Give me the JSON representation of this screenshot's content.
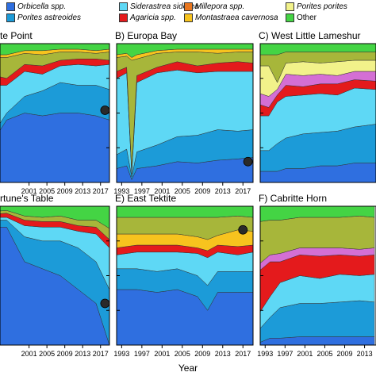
{
  "legend": [
    {
      "label": "Orbicella spp.",
      "color": "#2f6fe0",
      "italic": true
    },
    {
      "label": "Siderastrea siderea",
      "color": "#5ed8f5",
      "italic": true
    },
    {
      "label": "Millepora spp.",
      "color": "#e8761e",
      "italic": true
    },
    {
      "label": "Porites porites",
      "color": "#f2f28a",
      "italic": true
    },
    {
      "label": "Porites astreoides",
      "color": "#1c9bd8",
      "italic": true
    },
    {
      "label": "Agaricia spp.",
      "color": "#e41a1c",
      "italic": true
    },
    {
      "label": "Montastraea cavernosa",
      "color": "#f7c31e",
      "italic": true
    },
    {
      "label": "Other",
      "color": "#44d444",
      "italic": false
    }
  ],
  "colors": {
    "orbicella": "#2f6fe0",
    "porites_astreoides": "#1c9bd8",
    "siderastrea": "#5ed8f5",
    "agaricia": "#e41a1c",
    "millepora": "#e8761e",
    "montastraea": "#f7c31e",
    "porites_porites": "#f2f28a",
    "purple": "#d46fd4",
    "olive": "#a7b63a",
    "other": "#44d444",
    "marker": "#2a2a2a"
  },
  "x_axis_title": "Year",
  "chart_data": [
    {
      "type": "area",
      "stacked": true,
      "title": "C) West Little Lameshur",
      "shown_title": "te Point",
      "x": [
        1992,
        1996,
        2000,
        2004,
        2008,
        2012,
        2016,
        2019
      ],
      "xticks": [
        "2001",
        "2005",
        "2009",
        "2013",
        "2017"
      ],
      "ylim": [
        0,
        1
      ],
      "series": [
        {
          "color": "orbicella",
          "values": [
            0.25,
            0.45,
            0.5,
            0.48,
            0.5,
            0.5,
            0.48,
            0.45
          ]
        },
        {
          "color": "porites_astreoides",
          "values": [
            0.05,
            0.05,
            0.12,
            0.18,
            0.22,
            0.2,
            0.22,
            0.22
          ]
        },
        {
          "color": "siderastrea",
          "values": [
            0.4,
            0.2,
            0.18,
            0.12,
            0.12,
            0.15,
            0.14,
            0.18
          ]
        },
        {
          "color": "agaricia",
          "values": [
            0.08,
            0.05,
            0.05,
            0.06,
            0.04,
            0.04,
            0.05,
            0.03
          ]
        },
        {
          "color": "olive",
          "values": [
            0.12,
            0.15,
            0.08,
            0.08,
            0.06,
            0.05,
            0.04,
            0.06
          ]
        },
        {
          "color": "montastraea",
          "values": [
            0.02,
            0.02,
            0.02,
            0.03,
            0.02,
            0.02,
            0.02,
            0.02
          ]
        },
        {
          "color": "other",
          "values": [
            0.08,
            0.08,
            0.05,
            0.05,
            0.04,
            0.04,
            0.05,
            0.04
          ]
        }
      ],
      "marker": {
        "x": 2018,
        "y": 0.52
      }
    },
    {
      "type": "area",
      "stacked": true,
      "title": "B) Europa Bay",
      "x": [
        1992,
        1994,
        1995,
        1996,
        2000,
        2004,
        2008,
        2012,
        2016,
        2019
      ],
      "xticks": [
        "1993",
        "1997",
        "2001",
        "2005",
        "2009",
        "2013",
        "2017"
      ],
      "ylim": [
        0,
        1
      ],
      "series": [
        {
          "color": "orbicella",
          "values": [
            0.1,
            0.12,
            0.02,
            0.1,
            0.12,
            0.15,
            0.14,
            0.16,
            0.17,
            0.18
          ]
        },
        {
          "color": "porites_astreoides",
          "values": [
            0.1,
            0.12,
            0.02,
            0.12,
            0.15,
            0.18,
            0.2,
            0.22,
            0.2,
            0.2
          ]
        },
        {
          "color": "siderastrea",
          "values": [
            0.55,
            0.55,
            0.02,
            0.5,
            0.52,
            0.48,
            0.45,
            0.42,
            0.43,
            0.42
          ]
        },
        {
          "color": "agaricia",
          "values": [
            0.05,
            0.04,
            0.02,
            0.05,
            0.04,
            0.06,
            0.05,
            0.06,
            0.07,
            0.06
          ]
        },
        {
          "color": "olive",
          "values": [
            0.1,
            0.08,
            0.8,
            0.12,
            0.1,
            0.07,
            0.1,
            0.07,
            0.07,
            0.08
          ]
        },
        {
          "color": "montastraea",
          "values": [
            0.02,
            0.02,
            0.02,
            0.03,
            0.02,
            0.02,
            0.02,
            0.03,
            0.02,
            0.02
          ]
        },
        {
          "color": "other",
          "values": [
            0.08,
            0.07,
            0.1,
            0.08,
            0.05,
            0.04,
            0.04,
            0.04,
            0.04,
            0.04
          ]
        }
      ],
      "marker": {
        "x": 2018,
        "y": 0.15
      }
    },
    {
      "type": "area",
      "stacked": true,
      "title": "C) West Little Lameshur",
      "x": [
        1992,
        1994,
        1996,
        1998,
        2002,
        2006,
        2010,
        2014,
        2019
      ],
      "xticks": [],
      "ylim": [
        0,
        1
      ],
      "series": [
        {
          "color": "orbicella",
          "values": [
            0.08,
            0.08,
            0.08,
            0.1,
            0.1,
            0.12,
            0.12,
            0.14,
            0.14
          ]
        },
        {
          "color": "porites_astreoides",
          "values": [
            0.15,
            0.15,
            0.2,
            0.22,
            0.25,
            0.24,
            0.25,
            0.26,
            0.28
          ]
        },
        {
          "color": "siderastrea",
          "values": [
            0.25,
            0.25,
            0.3,
            0.3,
            0.28,
            0.28,
            0.26,
            0.28,
            0.25
          ]
        },
        {
          "color": "agaricia",
          "values": [
            0.08,
            0.06,
            0.05,
            0.08,
            0.06,
            0.07,
            0.08,
            0.06,
            0.06
          ]
        },
        {
          "color": "purple",
          "values": [
            0.08,
            0.08,
            0.04,
            0.08,
            0.08,
            0.07,
            0.06,
            0.06,
            0.07
          ]
        },
        {
          "color": "porites_porites",
          "values": [
            0.2,
            0.22,
            0.05,
            0.08,
            0.1,
            0.08,
            0.1,
            0.08,
            0.08
          ]
        },
        {
          "color": "olive",
          "values": [
            0.08,
            0.08,
            0.2,
            0.08,
            0.07,
            0.08,
            0.07,
            0.06,
            0.06
          ]
        },
        {
          "color": "other",
          "values": [
            0.08,
            0.08,
            0.08,
            0.06,
            0.06,
            0.06,
            0.06,
            0.06,
            0.06
          ]
        }
      ]
    },
    {
      "type": "area",
      "stacked": true,
      "title": "D) Fortune's Table",
      "shown_title": "rtune's Table",
      "x": [
        1992,
        1996,
        2000,
        2004,
        2008,
        2012,
        2016,
        2019
      ],
      "xticks": [
        "2001",
        "2005",
        "2009",
        "2013",
        "2017"
      ],
      "ylim": [
        0,
        1
      ],
      "series": [
        {
          "color": "orbicella",
          "values": [
            0.85,
            0.85,
            0.6,
            0.55,
            0.5,
            0.4,
            0.3,
            0.0
          ]
        },
        {
          "color": "porites_astreoides",
          "values": [
            0.05,
            0.05,
            0.18,
            0.2,
            0.25,
            0.3,
            0.3,
            0.4
          ]
        },
        {
          "color": "siderastrea",
          "values": [
            0.02,
            0.02,
            0.08,
            0.1,
            0.1,
            0.12,
            0.2,
            0.3
          ]
        },
        {
          "color": "agaricia",
          "values": [
            0.02,
            0.03,
            0.04,
            0.04,
            0.04,
            0.04,
            0.05,
            0.06
          ]
        },
        {
          "color": "olive",
          "values": [
            0.02,
            0.02,
            0.03,
            0.03,
            0.04,
            0.04,
            0.05,
            0.08
          ]
        },
        {
          "color": "other",
          "values": [
            0.04,
            0.03,
            0.07,
            0.08,
            0.07,
            0.1,
            0.1,
            0.16
          ]
        }
      ],
      "marker": {
        "x": 2018,
        "y": 0.3
      }
    },
    {
      "type": "area",
      "stacked": true,
      "title": "E) East Tektite",
      "x": [
        1992,
        1996,
        2000,
        2004,
        2008,
        2010,
        2012,
        2016,
        2019
      ],
      "xticks": [
        "1993",
        "1997",
        "2001",
        "2005",
        "2009",
        "2013",
        "2017"
      ],
      "ylim": [
        0,
        1
      ],
      "series": [
        {
          "color": "orbicella",
          "values": [
            0.4,
            0.4,
            0.38,
            0.4,
            0.35,
            0.25,
            0.38,
            0.38,
            0.38
          ]
        },
        {
          "color": "porites_astreoides",
          "values": [
            0.15,
            0.15,
            0.15,
            0.15,
            0.15,
            0.18,
            0.15,
            0.15,
            0.15
          ]
        },
        {
          "color": "siderastrea",
          "values": [
            0.1,
            0.12,
            0.14,
            0.12,
            0.16,
            0.2,
            0.14,
            0.12,
            0.14
          ]
        },
        {
          "color": "agaricia",
          "values": [
            0.05,
            0.05,
            0.05,
            0.05,
            0.04,
            0.05,
            0.05,
            0.06,
            0.05
          ]
        },
        {
          "color": "montastraea",
          "values": [
            0.1,
            0.08,
            0.08,
            0.08,
            0.08,
            0.08,
            0.07,
            0.12,
            0.1
          ]
        },
        {
          "color": "olive",
          "values": [
            0.12,
            0.12,
            0.12,
            0.12,
            0.14,
            0.16,
            0.13,
            0.1,
            0.1
          ]
        },
        {
          "color": "other",
          "values": [
            0.08,
            0.08,
            0.08,
            0.08,
            0.08,
            0.08,
            0.08,
            0.07,
            0.08
          ]
        }
      ],
      "marker": {
        "x": 2017,
        "y": 0.83
      }
    },
    {
      "type": "area",
      "stacked": true,
      "title": "F) Cabritte Horn",
      "x": [
        1992,
        1994,
        1996,
        2000,
        2004,
        2008,
        2012,
        2015
      ],
      "xticks": [
        "1993",
        "1997",
        "2001",
        "2005",
        "2009",
        "2013"
      ],
      "ylim": [
        0,
        1
      ],
      "series": [
        {
          "color": "orbicella",
          "values": [
            0.02,
            0.05,
            0.05,
            0.06,
            0.06,
            0.06,
            0.06,
            0.06
          ]
        },
        {
          "color": "porites_astreoides",
          "values": [
            0.1,
            0.15,
            0.22,
            0.24,
            0.24,
            0.25,
            0.26,
            0.25
          ]
        },
        {
          "color": "siderastrea",
          "values": [
            0.12,
            0.15,
            0.18,
            0.2,
            0.18,
            0.2,
            0.18,
            0.2
          ]
        },
        {
          "color": "agaricia",
          "values": [
            0.3,
            0.25,
            0.15,
            0.15,
            0.16,
            0.14,
            0.14,
            0.14
          ]
        },
        {
          "color": "purple",
          "values": [
            0.05,
            0.05,
            0.06,
            0.05,
            0.06,
            0.05,
            0.05,
            0.05
          ]
        },
        {
          "color": "olive",
          "values": [
            0.3,
            0.25,
            0.24,
            0.22,
            0.22,
            0.22,
            0.24,
            0.22
          ]
        },
        {
          "color": "other",
          "values": [
            0.11,
            0.1,
            0.1,
            0.08,
            0.08,
            0.08,
            0.07,
            0.08
          ]
        }
      ]
    }
  ]
}
